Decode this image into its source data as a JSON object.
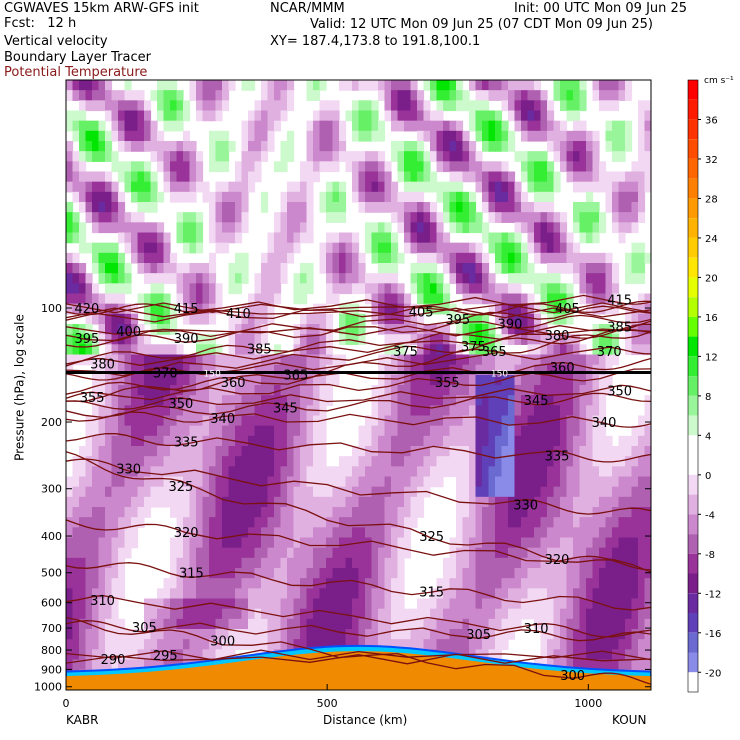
{
  "header": {
    "title_line1": "CGWAVES 15km ARW-GFS init",
    "fcst_line": "Fcst:   12 h",
    "field1": "Vertical velocity",
    "field2": "Boundary Layer Tracer",
    "field3": "Potential Temperature",
    "org": "NCAR/MMM",
    "init": "Init: 00 UTC Mon 09 Jun 25",
    "valid": "Valid: 12 UTC Mon 09 Jun 25 (07 CDT Mon 09 Jun 25)",
    "xy": "XY= 187.4,173.8 to 191.8,100.1"
  },
  "colors": {
    "theta_contour": "#7a1010",
    "terrain": "#f08a00",
    "tropopause": "#000000"
  },
  "chart_data": {
    "type": "heatmap",
    "title": "",
    "xlabel": "Distance (km)",
    "ylabel": "Pressure (hPa), log scale",
    "xlim": [
      0,
      1120
    ],
    "ylim": [
      1020,
      25
    ],
    "x_ticks": [
      0,
      500,
      1000
    ],
    "y_ticks": [
      100,
      200,
      300,
      400,
      500,
      600,
      700,
      800,
      900,
      1000
    ],
    "x_endpoints": [
      "KABR",
      "KOUN"
    ],
    "colorbar": {
      "units": "cm s⁻¹",
      "ticks": [
        36,
        32,
        28,
        24,
        20,
        16,
        12,
        8,
        4,
        0,
        -4,
        -8,
        -12,
        -16,
        -20
      ],
      "bins": [
        {
          "min": 38,
          "color": "#ff0000"
        },
        {
          "min": 36,
          "color": "#ff1a00"
        },
        {
          "min": 34,
          "color": "#ff3300"
        },
        {
          "min": 32,
          "color": "#ff4d00"
        },
        {
          "min": 30,
          "color": "#ff6600"
        },
        {
          "min": 28,
          "color": "#ff8000"
        },
        {
          "min": 26,
          "color": "#ff9900"
        },
        {
          "min": 24,
          "color": "#ffb300"
        },
        {
          "min": 22,
          "color": "#ffcc00"
        },
        {
          "min": 20,
          "color": "#ffe600"
        },
        {
          "min": 18,
          "color": "#e6ff00"
        },
        {
          "min": 16,
          "color": "#b3ff00"
        },
        {
          "min": 14,
          "color": "#66ff00"
        },
        {
          "min": 12,
          "color": "#00e600"
        },
        {
          "min": 10,
          "color": "#33ee33"
        },
        {
          "min": 8,
          "color": "#66f066"
        },
        {
          "min": 6,
          "color": "#99f599"
        },
        {
          "min": 4,
          "color": "#ccfacc"
        },
        {
          "min": 2,
          "color": "#ffffff"
        },
        {
          "min": 0,
          "color": "#ffffff"
        },
        {
          "min": -2,
          "color": "#f2d8f2"
        },
        {
          "min": -4,
          "color": "#e0b0e0"
        },
        {
          "min": -6,
          "color": "#cc88cc"
        },
        {
          "min": -8,
          "color": "#b060b0"
        },
        {
          "min": -10,
          "color": "#993399"
        },
        {
          "min": -12,
          "color": "#7a1f8a"
        },
        {
          "min": -14,
          "color": "#6a2aa0"
        },
        {
          "min": -16,
          "color": "#6040b8"
        },
        {
          "min": -18,
          "color": "#6a6ad0"
        },
        {
          "min": -20,
          "color": "#8a8ae8"
        }
      ]
    },
    "theta_contours": [
      {
        "theta": 420,
        "label_x": 40,
        "label_p": 100
      },
      {
        "theta": 415,
        "label_x": 230,
        "label_p": 100
      },
      {
        "theta": 415,
        "label_x": 1060,
        "label_p": 95
      },
      {
        "theta": 410,
        "label_x": 330,
        "label_p": 103
      },
      {
        "theta": 405,
        "label_x": 680,
        "label_p": 102
      },
      {
        "theta": 405,
        "label_x": 960,
        "label_p": 100
      },
      {
        "theta": 400,
        "label_x": 120,
        "label_p": 115
      },
      {
        "theta": 395,
        "label_x": 40,
        "label_p": 120
      },
      {
        "theta": 395,
        "label_x": 750,
        "label_p": 107
      },
      {
        "theta": 390,
        "label_x": 230,
        "label_p": 120
      },
      {
        "theta": 390,
        "label_x": 850,
        "label_p": 110
      },
      {
        "theta": 385,
        "label_x": 370,
        "label_p": 128
      },
      {
        "theta": 385,
        "label_x": 1060,
        "label_p": 112
      },
      {
        "theta": 380,
        "label_x": 940,
        "label_p": 118
      },
      {
        "theta": 380,
        "label_x": 70,
        "label_p": 140
      },
      {
        "theta": 375,
        "label_x": 650,
        "label_p": 130
      },
      {
        "theta": 375,
        "label_x": 780,
        "label_p": 126
      },
      {
        "theta": 370,
        "label_x": 1040,
        "label_p": 130
      },
      {
        "theta": 370,
        "label_x": 190,
        "label_p": 148
      },
      {
        "theta": 365,
        "label_x": 820,
        "label_p": 130
      },
      {
        "theta": 365,
        "label_x": 440,
        "label_p": 150
      },
      {
        "theta": 360,
        "label_x": 320,
        "label_p": 157
      },
      {
        "theta": 360,
        "label_x": 950,
        "label_p": 143
      },
      {
        "theta": 355,
        "label_x": 50,
        "label_p": 172
      },
      {
        "theta": 355,
        "label_x": 730,
        "label_p": 157
      },
      {
        "theta": 350,
        "label_x": 220,
        "label_p": 178
      },
      {
        "theta": 350,
        "label_x": 1060,
        "label_p": 165
      },
      {
        "theta": 345,
        "label_x": 420,
        "label_p": 183
      },
      {
        "theta": 345,
        "label_x": 900,
        "label_p": 175
      },
      {
        "theta": 340,
        "label_x": 300,
        "label_p": 195
      },
      {
        "theta": 340,
        "label_x": 1030,
        "label_p": 200
      },
      {
        "theta": 335,
        "label_x": 230,
        "label_p": 225
      },
      {
        "theta": 335,
        "label_x": 940,
        "label_p": 245
      },
      {
        "theta": 330,
        "label_x": 120,
        "label_p": 265
      },
      {
        "theta": 330,
        "label_x": 880,
        "label_p": 330
      },
      {
        "theta": 325,
        "label_x": 220,
        "label_p": 295
      },
      {
        "theta": 325,
        "label_x": 700,
        "label_p": 400
      },
      {
        "theta": 320,
        "label_x": 230,
        "label_p": 390
      },
      {
        "theta": 320,
        "label_x": 940,
        "label_p": 460
      },
      {
        "theta": 315,
        "label_x": 240,
        "label_p": 500
      },
      {
        "theta": 315,
        "label_x": 700,
        "label_p": 560
      },
      {
        "theta": 310,
        "label_x": 70,
        "label_p": 590
      },
      {
        "theta": 310,
        "label_x": 900,
        "label_p": 700
      },
      {
        "theta": 305,
        "label_x": 150,
        "label_p": 695
      },
      {
        "theta": 305,
        "label_x": 790,
        "label_p": 725
      },
      {
        "theta": 300,
        "label_x": 300,
        "label_p": 755
      },
      {
        "theta": 300,
        "label_x": 970,
        "label_p": 930
      },
      {
        "theta": 295,
        "label_x": 190,
        "label_p": 825
      },
      {
        "theta": 290,
        "label_x": 90,
        "label_p": 845
      }
    ],
    "tropopause": {
      "p": 148,
      "labels": [
        {
          "x": 280,
          "text": "150"
        },
        {
          "x": 830,
          "text": "150"
        }
      ]
    }
  }
}
